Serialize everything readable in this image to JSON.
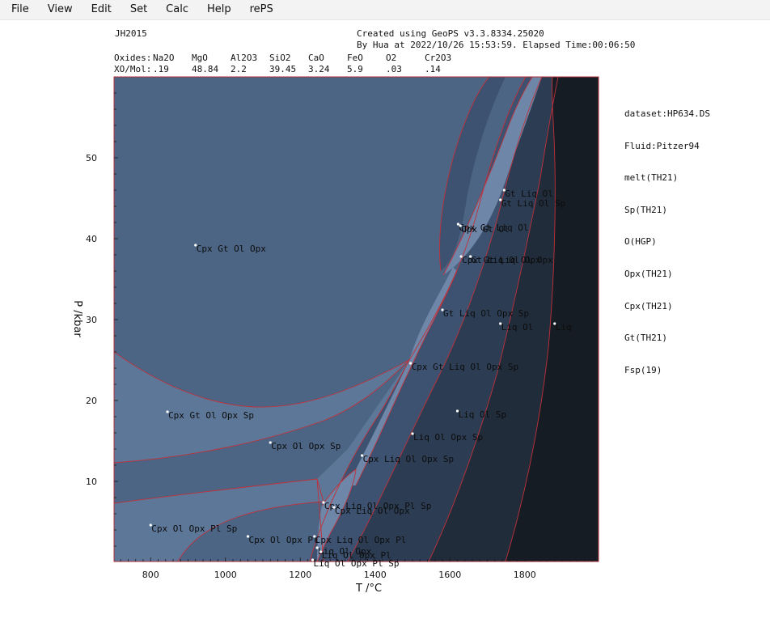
{
  "menu": [
    "File",
    "View",
    "Edit",
    "Set",
    "Calc",
    "Help",
    "rePS"
  ],
  "header": {
    "sample": "JH2015",
    "created": "Created using GeoPS v3.3.8334.25020",
    "by": "By Hua at 2022/10/26 15:53:59. Elapsed Time:00:06:50",
    "oxides_label": "Oxides:",
    "xo_label": "XO/Mol:",
    "oxides": [
      {
        "name": "Na2O",
        "value": ".19"
      },
      {
        "name": "MgO",
        "value": "48.84"
      },
      {
        "name": "Al2O3",
        "value": "2.2"
      },
      {
        "name": "SiO2",
        "value": "39.45"
      },
      {
        "name": "CaO",
        "value": "3.24"
      },
      {
        "name": "FeO",
        "value": "5.9"
      },
      {
        "name": "O2",
        "value": ".03"
      },
      {
        "name": "Cr2O3",
        "value": ".14"
      }
    ]
  },
  "legend": [
    "dataset:HP634.DS",
    "Fluid:Pitzer94",
    "melt(TH21)",
    "Sp(TH21)",
    "O(HGP)",
    "Opx(TH21)",
    "Cpx(TH21)",
    "Gt(TH21)",
    "Fsp(19)"
  ],
  "chart_data": {
    "type": "phase-diagram",
    "xlabel": "T /°C",
    "ylabel": "P /kbar",
    "xlim": [
      700,
      2000
    ],
    "ylim": [
      0,
      60
    ],
    "xticks": [
      800,
      1000,
      1200,
      1400,
      1600,
      1800
    ],
    "yticks": [
      10,
      20,
      30,
      40,
      50
    ],
    "colors": {
      "boundary": "#c0303a",
      "plot_border": "#b03038",
      "field_colors": [
        "#4c6584",
        "#5d7798",
        "#3d5270",
        "#2c3d53",
        "#212c3b",
        "#161c24",
        "#6e86a8"
      ]
    },
    "fields": [
      {
        "label": "Cpx Gt Ol Opx",
        "T": 920,
        "P": 39.2
      },
      {
        "label": "Cpx Gt Ol Opx Sp",
        "T": 845,
        "P": 18.6
      },
      {
        "label": "Cpx Ol Opx Sp",
        "T": 1120,
        "P": 14.8
      },
      {
        "label": "Cpx Ol Opx Pl Sp",
        "T": 800,
        "P": 4.6
      },
      {
        "label": "Cpx Ol Opx Pl",
        "T": 1060,
        "P": 3.2
      },
      {
        "label": "Cpx Liq Ol Opx Pl Sp",
        "T": 1262,
        "P": 7.4
      },
      {
        "label": "Cpx Liq Ol Opx",
        "T": 1290,
        "P": 6.8
      },
      {
        "label": "Cpx Liq Ol Opx Pl",
        "T": 1238,
        "P": 3.2
      },
      {
        "label": "Liq Ol Opx",
        "T": 1245,
        "P": 1.8
      },
      {
        "label": "Liq Ol Opx Pl",
        "T": 1255,
        "P": 1.3
      },
      {
        "label": "Liq Ol Opx Pl Sp",
        "T": 1233,
        "P": 0.3
      },
      {
        "label": "Cpx Liq Ol Opx Sp",
        "T": 1365,
        "P": 13.2
      },
      {
        "label": "Liq Ol Opx Sp",
        "T": 1500,
        "P": 15.9
      },
      {
        "label": "Liq Ol Sp",
        "T": 1620,
        "P": 18.7
      },
      {
        "label": "Cpx Gt Liq Ol Opx Sp",
        "T": 1495,
        "P": 24.6
      },
      {
        "label": "Gt Liq Ol Opx Sp",
        "T": 1580,
        "P": 31.2
      },
      {
        "label": "Liq Ol",
        "T": 1735,
        "P": 29.5
      },
      {
        "label": "Liq",
        "T": 1880,
        "P": 29.5
      },
      {
        "label": "Cpx Gt Liq Ol Opx",
        "T": 1630,
        "P": 37.8
      },
      {
        "label": "Gt Liq Ol Opx",
        "T": 1655,
        "P": 37.8
      },
      {
        "label": "Cpx Gt Liq Ol",
        "T": 1622,
        "P": 41.8
      },
      {
        "label": "Opx Gt Ol",
        "T": 1628,
        "P": 41.6
      },
      {
        "label": "Gt Liq Ol",
        "T": 1745,
        "P": 46.0
      },
      {
        "label": "Gt Liq Ol Sp",
        "T": 1735,
        "P": 44.8
      }
    ]
  }
}
